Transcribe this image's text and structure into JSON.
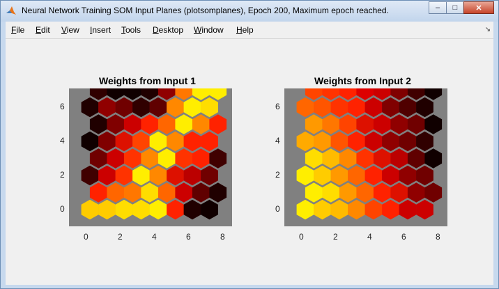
{
  "window": {
    "title": "Neural Network Training SOM Input Planes (plotsomplanes), Epoch 200, Maximum epoch reached.",
    "minimize_glyph": "–",
    "maximize_glyph": "□",
    "close_glyph": "✕"
  },
  "menu": {
    "items": [
      {
        "u": "F",
        "rest": "ile"
      },
      {
        "u": "E",
        "rest": "dit"
      },
      {
        "u": "V",
        "rest": "iew"
      },
      {
        "u": "I",
        "rest": "nsert"
      },
      {
        "u": "T",
        "rest": "ools"
      },
      {
        "u": "D",
        "rest": "esktop"
      },
      {
        "u": "W",
        "rest": "indow"
      },
      {
        "u": "H",
        "rest": "elp"
      }
    ],
    "dock_glyph": "↘"
  },
  "plots": [
    {
      "title": "Weights from Input 1",
      "xticks": [
        "0",
        "2",
        "4",
        "6",
        "8"
      ],
      "yticks": [
        "6",
        "4",
        "2",
        "0"
      ],
      "rows": [
        [
          "#ffcc00",
          "#ffcc00",
          "#ffdd00",
          "#ffdd00",
          "#ffee00",
          "#ff2200",
          "#200000",
          "#100000"
        ],
        [
          "#ff2200",
          "#ff6600",
          "#ff7700",
          "#ffdd00",
          "#ff6600",
          "#cc0000",
          "#600000",
          "#200000"
        ],
        [
          "#400000",
          "#cc0000",
          "#ff3300",
          "#ffee00",
          "#ff8800",
          "#dd1100",
          "#bb0000",
          "#700000"
        ],
        [
          "#700000",
          "#cc0000",
          "#ff3300",
          "#ff8800",
          "#ffee00",
          "#ff3300",
          "#ff2200",
          "#400000"
        ],
        [
          "#100000",
          "#800000",
          "#dd1100",
          "#ff4400",
          "#ffee00",
          "#ff8800",
          "#ff2200",
          "#ff2200"
        ],
        [
          "#200000",
          "#800000",
          "#cc0000",
          "#ff2200",
          "#ff6600",
          "#ffee00",
          "#ff8800",
          "#ff2200"
        ],
        [
          "#200000",
          "#900000",
          "#700000",
          "#300000",
          "#600000",
          "#ff8800",
          "#ffee00",
          "#ffdd00"
        ],
        [
          "#300000",
          "#100000",
          "#100000",
          "#200000",
          "#900000",
          "#ff7700",
          "#ffee00",
          "#ffee00"
        ]
      ]
    },
    {
      "title": "Weights from Input 2",
      "xticks": [
        "0",
        "2",
        "4",
        "6",
        "8"
      ],
      "yticks": [
        "6",
        "4",
        "2",
        "0"
      ],
      "rows": [
        [
          "#ffee00",
          "#ffcc00",
          "#ffbb00",
          "#ff8800",
          "#ff4400",
          "#ff2200",
          "#cc0000",
          "#cc0000"
        ],
        [
          "#ffee00",
          "#ffdd00",
          "#ff9900",
          "#ff6600",
          "#ff2200",
          "#dd1100",
          "#900000",
          "#700000"
        ],
        [
          "#ffee00",
          "#ffcc00",
          "#ff9900",
          "#ff6600",
          "#ff2200",
          "#cc0000",
          "#900000",
          "#700000"
        ],
        [
          "#ffdd00",
          "#ffbb00",
          "#ff8800",
          "#ff3300",
          "#dd1100",
          "#bb0000",
          "#600000",
          "#100000"
        ],
        [
          "#ffaa00",
          "#ff9900",
          "#ff5500",
          "#ff2200",
          "#cc0000",
          "#900000",
          "#700000",
          "#300000"
        ],
        [
          "#ff9900",
          "#ff7700",
          "#ff4400",
          "#dd1100",
          "#cc0000",
          "#900000",
          "#700000",
          "#100000"
        ],
        [
          "#ff6600",
          "#ff5500",
          "#ff3300",
          "#ff2200",
          "#cc0000",
          "#800000",
          "#500000",
          "#200000"
        ],
        [
          "#ff4400",
          "#ff3300",
          "#ff2200",
          "#dd0000",
          "#cc0000",
          "#800000",
          "#400000",
          "#100000"
        ]
      ]
    }
  ]
}
